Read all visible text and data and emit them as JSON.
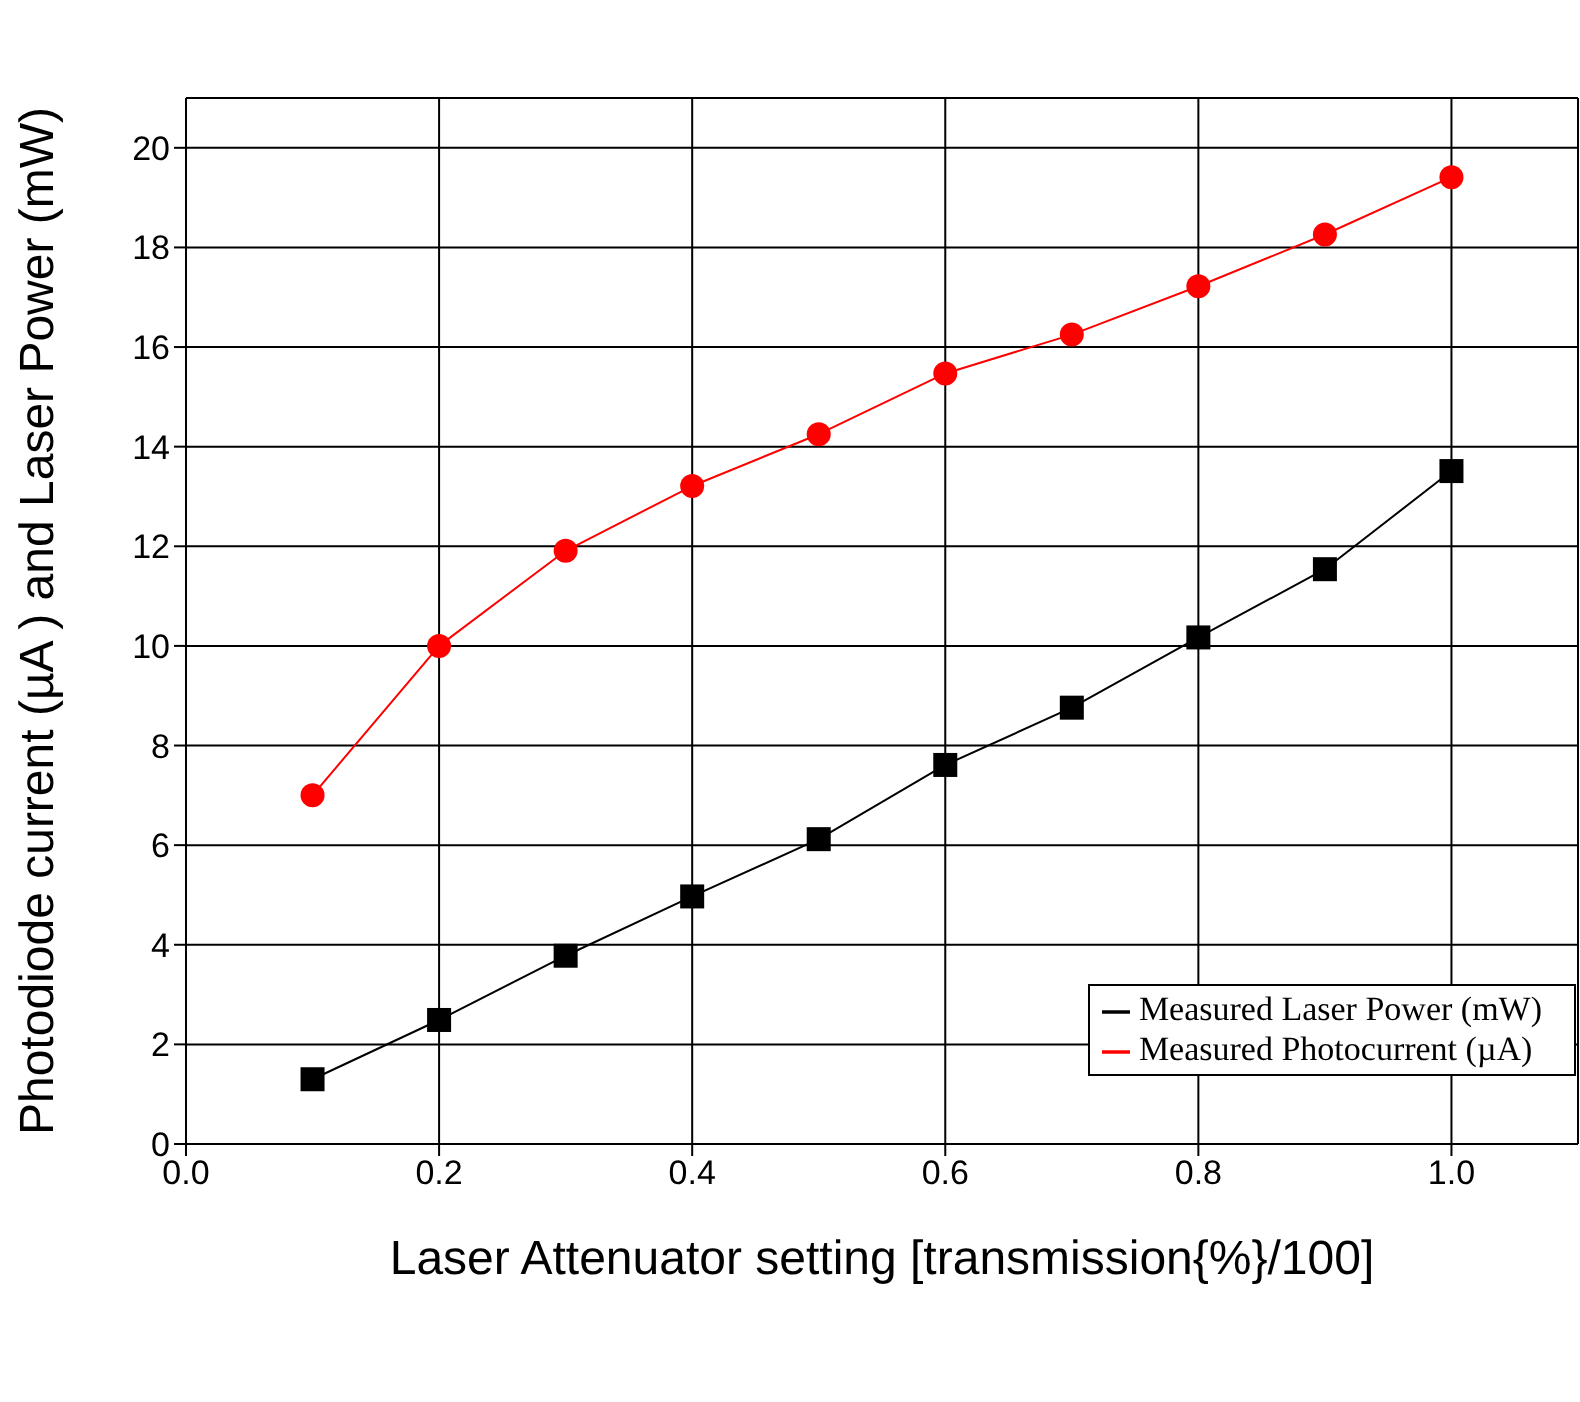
{
  "chart_data": {
    "type": "line",
    "xlabel": "Laser Attenuator setting [transmission{%}/100]",
    "ylabel": "Photodiode current (µA ) and Laser Power (mW)",
    "x": [
      0.1,
      0.2,
      0.3,
      0.4,
      0.5,
      0.6,
      0.7,
      0.8,
      0.9,
      1.0
    ],
    "xlim": [
      0,
      1.1
    ],
    "xticks": [
      {
        "value": 0,
        "label": "0.0"
      },
      0.2,
      0.4,
      0.6,
      0.8,
      {
        "value": 1,
        "label": "1.0"
      }
    ],
    "ylim": [
      0,
      21
    ],
    "yticks": [
      0,
      2,
      4,
      6,
      8,
      10,
      12,
      14,
      16,
      18,
      20
    ],
    "grid": true,
    "legend": "bottom right",
    "series": [
      {
        "name": "Measured Laser Power (mW)",
        "color": "#000000",
        "marker": "square",
        "values": [
          1.3,
          2.49,
          3.78,
          4.97,
          6.12,
          7.61,
          8.76,
          10.17,
          11.54,
          13.51
        ]
      },
      {
        "name": "Measured Photocurrent (µA)",
        "color": "#ff0000",
        "marker": "circle",
        "values": [
          7.0,
          10.0,
          11.91,
          13.21,
          14.25,
          15.47,
          16.25,
          17.22,
          18.26,
          19.41
        ]
      }
    ]
  }
}
